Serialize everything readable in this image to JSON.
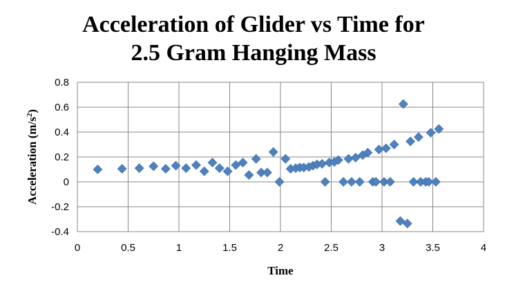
{
  "chart_data": {
    "type": "scatter",
    "title_line1": "Acceleration of Glider vs Time for",
    "title_line2": "2.5 Gram Hanging Mass",
    "xlabel": "Time",
    "ylabel": "Acceleration (m/s",
    "ylabel_sup": "2",
    "ylabel_end": ")",
    "xlim": [
      0,
      4
    ],
    "ylim": [
      -0.4,
      0.8
    ],
    "x_ticks": [
      0,
      0.5,
      1,
      1.5,
      2,
      2.5,
      3,
      3.5,
      4
    ],
    "x_tick_labels": [
      "0",
      "0.5",
      "1",
      "1.5",
      "2",
      "2.5",
      "3",
      "3.5",
      "4"
    ],
    "y_ticks": [
      -0.4,
      -0.2,
      0,
      0.2,
      0.4,
      0.6,
      0.8
    ],
    "y_tick_labels": [
      "-0.4",
      "-0.2",
      "0",
      "0.2",
      "0.4",
      "0.6",
      "0.8"
    ],
    "grid": true,
    "marker_color": "#4F81BD",
    "marker_shape": "diamond",
    "points": [
      [
        0.2,
        0.1
      ],
      [
        0.44,
        0.105
      ],
      [
        0.61,
        0.11
      ],
      [
        0.75,
        0.125
      ],
      [
        0.87,
        0.105
      ],
      [
        0.97,
        0.13
      ],
      [
        1.07,
        0.11
      ],
      [
        1.17,
        0.135
      ],
      [
        1.25,
        0.085
      ],
      [
        1.33,
        0.155
      ],
      [
        1.4,
        0.11
      ],
      [
        1.48,
        0.085
      ],
      [
        1.56,
        0.135
      ],
      [
        1.63,
        0.155
      ],
      [
        1.69,
        0.055
      ],
      [
        1.76,
        0.185
      ],
      [
        1.81,
        0.075
      ],
      [
        1.87,
        0.075
      ],
      [
        1.93,
        0.24
      ],
      [
        1.99,
        0.0
      ],
      [
        2.05,
        0.185
      ],
      [
        2.1,
        0.105
      ],
      [
        2.15,
        0.11
      ],
      [
        2.19,
        0.115
      ],
      [
        2.23,
        0.115
      ],
      [
        2.28,
        0.12
      ],
      [
        2.32,
        0.13
      ],
      [
        2.36,
        0.14
      ],
      [
        2.41,
        0.145
      ],
      [
        2.44,
        0.0
      ],
      [
        2.48,
        0.155
      ],
      [
        2.53,
        0.16
      ],
      [
        2.57,
        0.175
      ],
      [
        2.62,
        0.0
      ],
      [
        2.67,
        0.185
      ],
      [
        2.7,
        0.0
      ],
      [
        2.74,
        0.195
      ],
      [
        2.78,
        0.0
      ],
      [
        2.81,
        0.215
      ],
      [
        2.86,
        0.235
      ],
      [
        2.91,
        0.0
      ],
      [
        2.94,
        0.0
      ],
      [
        2.97,
        0.26
      ],
      [
        3.02,
        0.0
      ],
      [
        3.04,
        0.27
      ],
      [
        3.08,
        0.0
      ],
      [
        3.12,
        0.3
      ],
      [
        3.18,
        -0.315
      ],
      [
        3.21,
        0.625
      ],
      [
        3.25,
        -0.335
      ],
      [
        3.28,
        0.325
      ],
      [
        3.31,
        0.0
      ],
      [
        3.36,
        0.36
      ],
      [
        3.38,
        0.0
      ],
      [
        3.43,
        0.0
      ],
      [
        3.46,
        0.0
      ],
      [
        3.48,
        0.395
      ],
      [
        3.53,
        0.0
      ],
      [
        3.56,
        0.425
      ]
    ]
  }
}
